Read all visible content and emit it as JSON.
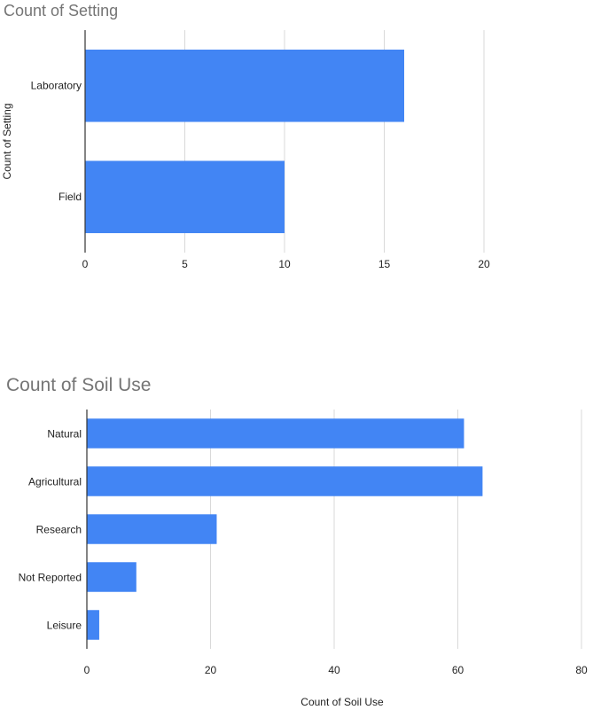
{
  "chart_data": [
    {
      "type": "bar",
      "orientation": "horizontal",
      "title": "Count of Setting",
      "ylabel": "Count of Setting",
      "xlabel": "",
      "categories": [
        "Laboratory",
        "Field"
      ],
      "values": [
        16,
        10
      ],
      "xlim": [
        0,
        20
      ],
      "xticks": [
        "0",
        "5",
        "10",
        "15",
        "20"
      ],
      "grid": true,
      "color": "#4285f4"
    },
    {
      "type": "bar",
      "orientation": "horizontal",
      "title": "Count of Soil Use",
      "xlabel": "Count of Soil Use",
      "ylabel": "",
      "categories": [
        "Natural",
        "Agricultural",
        "Research",
        "Not Reported",
        "Leisure"
      ],
      "values": [
        61,
        64,
        21,
        8,
        2
      ],
      "xlim": [
        0,
        80
      ],
      "xticks": [
        "0",
        "20",
        "40",
        "60",
        "80"
      ],
      "grid": true,
      "color": "#4285f4"
    }
  ]
}
